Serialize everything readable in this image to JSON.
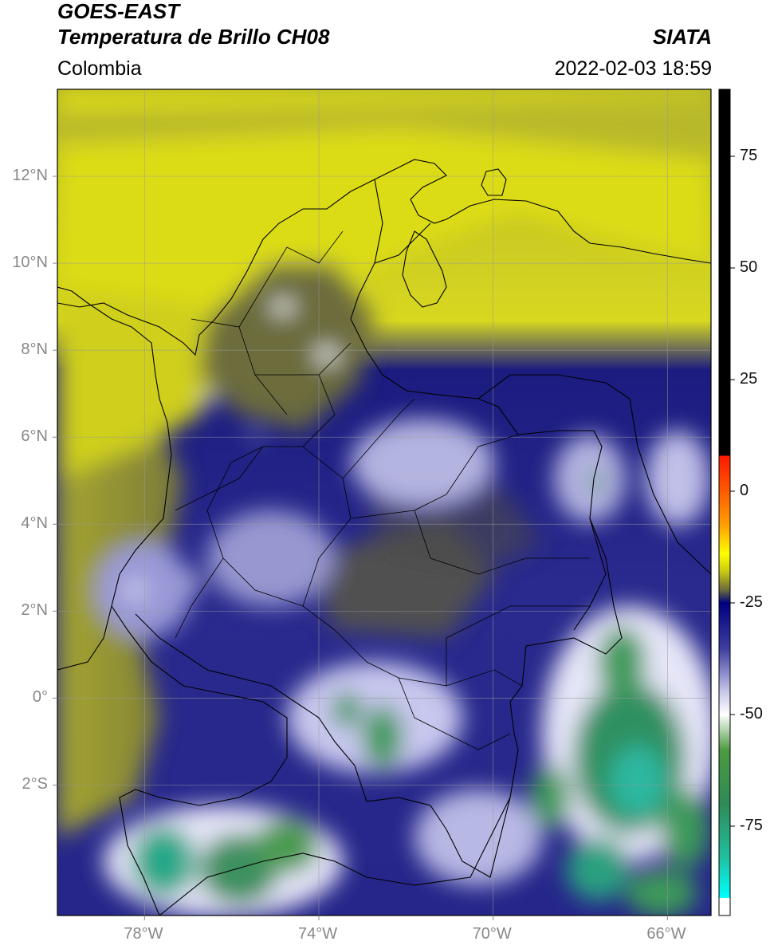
{
  "header": {
    "satellite": "GOES-EAST",
    "product": "Temperatura de Brillo CH08",
    "region": "Colombia",
    "agency": "SIATA",
    "datetime": "2022-02-03 18:59"
  },
  "map": {
    "lon_range": [
      -80,
      -65
    ],
    "lat_range": [
      -5,
      14
    ],
    "lat_ticks": [
      {
        "value": 12,
        "label": "12°N"
      },
      {
        "value": 10,
        "label": "10°N"
      },
      {
        "value": 8,
        "label": "8°N"
      },
      {
        "value": 6,
        "label": "6°N"
      },
      {
        "value": 4,
        "label": "4°N"
      },
      {
        "value": 2,
        "label": "2°N"
      },
      {
        "value": 0,
        "label": "0°"
      },
      {
        "value": -2,
        "label": "2°S"
      }
    ],
    "lon_ticks": [
      {
        "value": -78,
        "label": "78°W"
      },
      {
        "value": -74,
        "label": "74°W"
      },
      {
        "value": -70,
        "label": "70°W"
      },
      {
        "value": -66,
        "label": "66°W"
      }
    ],
    "gridlines": true
  },
  "colorbar": {
    "range": [
      -95,
      90
    ],
    "ticks": [
      {
        "value": 75,
        "label": "75"
      },
      {
        "value": 50,
        "label": "50"
      },
      {
        "value": 25,
        "label": "25"
      },
      {
        "value": 0,
        "label": "0"
      },
      {
        "value": -25,
        "label": "-25"
      },
      {
        "value": -50,
        "label": "-50"
      },
      {
        "value": -75,
        "label": "-75"
      }
    ],
    "stops": [
      {
        "value": 90,
        "color": "#000000"
      },
      {
        "value": 8,
        "color": "#000000"
      },
      {
        "value": 7.9,
        "color": "#ff1a00"
      },
      {
        "value": 0,
        "color": "#ff5a00"
      },
      {
        "value": -8,
        "color": "#ffa500"
      },
      {
        "value": -14,
        "color": "#ffff00"
      },
      {
        "value": -18,
        "color": "#c9c912"
      },
      {
        "value": -22,
        "color": "#6e6e3a"
      },
      {
        "value": -25,
        "color": "#000080"
      },
      {
        "value": -35,
        "color": "#3c3ca0"
      },
      {
        "value": -45,
        "color": "#c8c8ea"
      },
      {
        "value": -50,
        "color": "#ffffff"
      },
      {
        "value": -58,
        "color": "#4c9a40"
      },
      {
        "value": -70,
        "color": "#2e8b57"
      },
      {
        "value": -82,
        "color": "#20c0a0"
      },
      {
        "value": -91,
        "color": "#00ffff"
      },
      {
        "value": -91.1,
        "color": "#ffffff"
      },
      {
        "value": -95,
        "color": "#ffffff"
      }
    ]
  }
}
